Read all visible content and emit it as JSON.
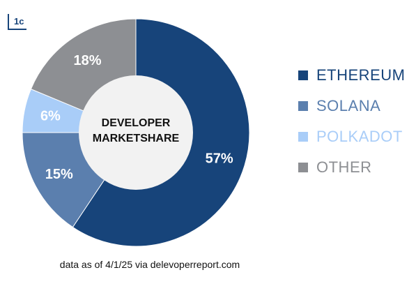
{
  "logo": {
    "text": "1c"
  },
  "chart_data": {
    "type": "pie",
    "donut": true,
    "center_label_lines": [
      "DEVELOPER",
      "MARKETSHARE"
    ],
    "series": [
      {
        "name": "ETHEREUM",
        "value": 57,
        "label": "57%",
        "color": "#17447a"
      },
      {
        "name": "SOLANA",
        "value": 15,
        "label": "15%",
        "color": "#5b7fae"
      },
      {
        "name": "POLKADOT",
        "value": 6,
        "label": "6%",
        "color": "#a9cdf8"
      },
      {
        "name": "OTHER",
        "value": 18,
        "label": "18%",
        "color": "#8d8f93"
      }
    ],
    "legend_placement": "right"
  },
  "source_text": "data as of 4/1/25 via delevoperreport.com"
}
